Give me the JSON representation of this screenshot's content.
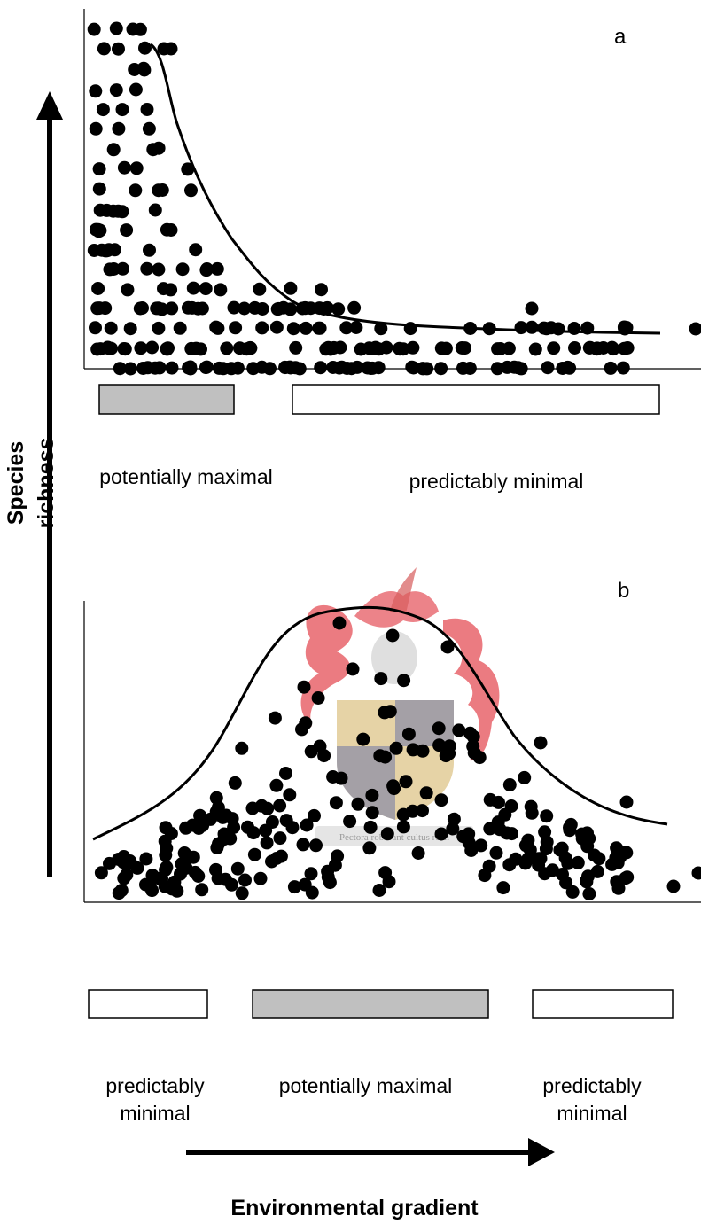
{
  "y_axis_title": "Species richness",
  "x_axis_title": "Environmental gradient",
  "panel_a": {
    "letter": "a",
    "bar_left_label": "potentially maximal",
    "bar_right_label": "predictably minimal"
  },
  "panel_b": {
    "letter": "b",
    "bar_left_label_line1": "predictably",
    "bar_left_label_line2": "minimal",
    "bar_middle_label": "potentially maximal",
    "bar_right_label_line1": "predictably",
    "bar_right_label_line2": "minimal"
  },
  "watermark_motto": "Pectora roborant cultus recti",
  "colors": {
    "points": "#000000",
    "shaded_box": "#c0c0c0",
    "watermark_red": "#e0303a",
    "watermark_blue": "#3a4a9a",
    "watermark_gold": "#c8a040"
  }
}
